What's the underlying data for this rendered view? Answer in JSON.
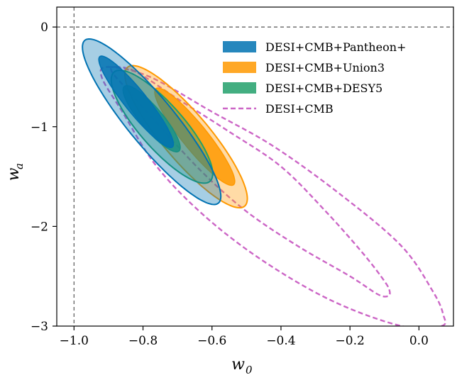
{
  "chart_data": {
    "type": "contour",
    "xlabel": "w_0",
    "ylabel": "w_a",
    "xlim": [
      -1.05,
      0.1
    ],
    "ylim": [
      -3.0,
      0.2
    ],
    "xticks": [
      -1.0,
      -0.8,
      -0.6,
      -0.4,
      -0.2,
      0.0
    ],
    "xtick_labels": [
      "−1.0",
      "−0.8",
      "−0.6",
      "−0.4",
      "−0.2",
      "0.0"
    ],
    "yticks": [
      0,
      -1,
      -2,
      -3
    ],
    "ytick_labels": [
      "0",
      "−1",
      "−2",
      "−3"
    ],
    "reference_lines": {
      "x": -1.0,
      "y": 0.0,
      "style": "dashed",
      "color": "#555555"
    },
    "legend_location": "upper right",
    "series": [
      {
        "name": "DESI+CMB+Pantheon+",
        "style": "filled",
        "color": "#0072b2",
        "contours": [
          {
            "level": "68%",
            "center": [
              -0.82,
              -0.75
            ],
            "direction": [
              0.22,
              -1.0
            ],
            "semi_major": 0.47,
            "semi_minor": 0.04
          },
          {
            "level": "95%",
            "center": [
              -0.775,
              -0.95
            ],
            "direction": [
              0.22,
              -1.0
            ],
            "semi_major": 0.85,
            "semi_minor": 0.085
          }
        ]
      },
      {
        "name": "DESI+CMB+Union3",
        "style": "filled",
        "color": "#ff9900",
        "contours": [
          {
            "level": "68%",
            "center": [
              -0.65,
              -1.1
            ],
            "direction": [
              0.22,
              -1.0
            ],
            "semi_major": 0.5,
            "semi_minor": 0.045
          },
          {
            "level": "95%",
            "center": [
              -0.675,
              -1.1
            ],
            "direction": [
              0.22,
              -1.0
            ],
            "semi_major": 0.73,
            "semi_minor": 0.085
          }
        ]
      },
      {
        "name": "DESI+CMB+DESY5",
        "style": "filled",
        "color": "#22a06b",
        "contours": [
          {
            "level": "68%",
            "center": [
              -0.775,
              -0.92
            ],
            "direction": [
              0.22,
              -1.0
            ],
            "semi_major": 0.34,
            "semi_minor": 0.04
          },
          {
            "level": "95%",
            "center": [
              -0.745,
              -1.0
            ],
            "direction": [
              0.22,
              -1.0
            ],
            "semi_major": 0.58,
            "semi_minor": 0.08
          }
        ]
      },
      {
        "name": "DESI+CMB",
        "style": "dashed",
        "color": "#cc66c6",
        "contours": [
          {
            "level": "68%",
            "points": [
              [
                -0.88,
                -0.4
              ],
              [
                -0.82,
                -0.45
              ],
              [
                -0.7,
                -0.72
              ],
              [
                -0.55,
                -1.05
              ],
              [
                -0.4,
                -1.4
              ],
              [
                -0.27,
                -1.85
              ],
              [
                -0.16,
                -2.28
              ],
              [
                -0.1,
                -2.55
              ],
              [
                -0.085,
                -2.65
              ],
              [
                -0.09,
                -2.7
              ],
              [
                -0.12,
                -2.68
              ],
              [
                -0.2,
                -2.5
              ],
              [
                -0.35,
                -2.2
              ],
              [
                -0.5,
                -1.85
              ],
              [
                -0.63,
                -1.45
              ],
              [
                -0.75,
                -1.0
              ],
              [
                -0.84,
                -0.65
              ],
              [
                -0.89,
                -0.45
              ]
            ]
          },
          {
            "level": "95%",
            "points": [
              [
                -0.9,
                -0.4
              ],
              [
                -0.78,
                -0.5
              ],
              [
                -0.6,
                -0.85
              ],
              [
                -0.42,
                -1.2
              ],
              [
                -0.22,
                -1.7
              ],
              [
                -0.05,
                -2.2
              ],
              [
                0.04,
                -2.65
              ],
              [
                0.07,
                -2.88
              ],
              [
                0.065,
                -3.0
              ],
              [
                -0.05,
                -3.0
              ],
              [
                -0.25,
                -2.75
              ],
              [
                -0.45,
                -2.35
              ],
              [
                -0.62,
                -1.9
              ],
              [
                -0.76,
                -1.4
              ],
              [
                -0.86,
                -0.85
              ],
              [
                -0.92,
                -0.5
              ]
            ]
          }
        ]
      }
    ]
  }
}
